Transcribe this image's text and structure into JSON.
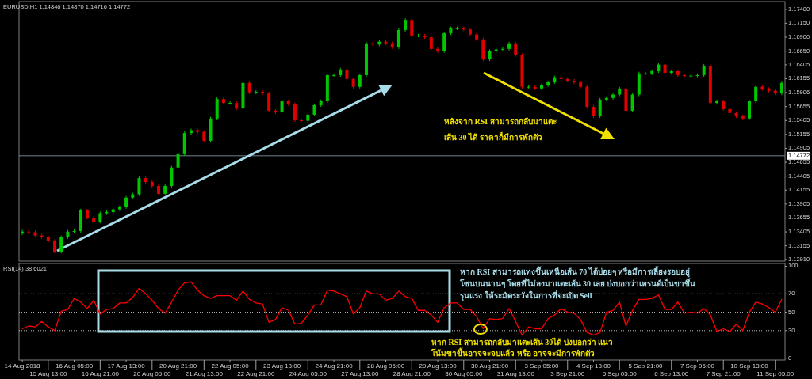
{
  "chart_data": [
    {
      "type": "candlestick",
      "title": "EURUSD.H1 1.14846 1.14870 1.14716 1.14772",
      "ohlc": [
        [
          1.1338,
          1.1344,
          1.1335,
          1.1341
        ],
        [
          1.1341,
          1.1344,
          1.1337,
          1.134
        ],
        [
          1.134,
          1.1343,
          1.1331,
          1.1334
        ],
        [
          1.1334,
          1.1337,
          1.1328,
          1.1331
        ],
        [
          1.1331,
          1.1334,
          1.1321,
          1.1324
        ],
        [
          1.1324,
          1.1327,
          1.1302,
          1.1305
        ],
        [
          1.1305,
          1.1334,
          1.1302,
          1.1331
        ],
        [
          1.1331,
          1.1344,
          1.1328,
          1.1341
        ],
        [
          1.1341,
          1.1345,
          1.1338,
          1.1342
        ],
        [
          1.1342,
          1.1382,
          1.1339,
          1.1379
        ],
        [
          1.1379,
          1.1382,
          1.1363,
          1.1366
        ],
        [
          1.1366,
          1.1369,
          1.1356,
          1.1359
        ],
        [
          1.1359,
          1.1377,
          1.1356,
          1.1374
        ],
        [
          1.1374,
          1.1379,
          1.1371,
          1.1376
        ],
        [
          1.1376,
          1.1384,
          1.1373,
          1.1381
        ],
        [
          1.1381,
          1.1388,
          1.1378,
          1.1385
        ],
        [
          1.1385,
          1.1405,
          1.1382,
          1.1402
        ],
        [
          1.1402,
          1.1411,
          1.1399,
          1.1408
        ],
        [
          1.1408,
          1.144,
          1.1405,
          1.1437
        ],
        [
          1.1437,
          1.144,
          1.1427,
          1.143
        ],
        [
          1.143,
          1.1433,
          1.142,
          1.1423
        ],
        [
          1.1423,
          1.1426,
          1.1406,
          1.1409
        ],
        [
          1.1409,
          1.1426,
          1.1406,
          1.1423
        ],
        [
          1.1423,
          1.1459,
          1.142,
          1.1456
        ],
        [
          1.1456,
          1.1483,
          1.1453,
          1.148
        ],
        [
          1.148,
          1.1521,
          1.1477,
          1.1518
        ],
        [
          1.1518,
          1.1526,
          1.1515,
          1.1523
        ],
        [
          1.1523,
          1.1526,
          1.1517,
          1.152
        ],
        [
          1.152,
          1.1523,
          1.1501,
          1.1504
        ],
        [
          1.1504,
          1.1547,
          1.1501,
          1.1544
        ],
        [
          1.1544,
          1.1582,
          1.1541,
          1.1579
        ],
        [
          1.1579,
          1.1582,
          1.1569,
          1.1572
        ],
        [
          1.1572,
          1.1575,
          1.1569,
          1.1572
        ],
        [
          1.1572,
          1.1575,
          1.1559,
          1.1562
        ],
        [
          1.1562,
          1.1611,
          1.1559,
          1.1608
        ],
        [
          1.1608,
          1.1611,
          1.1588,
          1.1591
        ],
        [
          1.1591,
          1.1595,
          1.1588,
          1.1592
        ],
        [
          1.1592,
          1.1595,
          1.1586,
          1.1589
        ],
        [
          1.1589,
          1.1592,
          1.1555,
          1.1558
        ],
        [
          1.1558,
          1.1561,
          1.1552,
          1.1555
        ],
        [
          1.1555,
          1.1578,
          1.1552,
          1.1575
        ],
        [
          1.1575,
          1.1578,
          1.1567,
          1.157
        ],
        [
          1.157,
          1.1573,
          1.1538,
          1.1541
        ],
        [
          1.1541,
          1.1544,
          1.1537,
          1.154
        ],
        [
          1.154,
          1.1554,
          1.1537,
          1.1551
        ],
        [
          1.1551,
          1.1571,
          1.1548,
          1.1568
        ],
        [
          1.1568,
          1.1578,
          1.1565,
          1.1575
        ],
        [
          1.1575,
          1.1625,
          1.1572,
          1.1622
        ],
        [
          1.1622,
          1.1625,
          1.1619,
          1.1622
        ],
        [
          1.1622,
          1.1635,
          1.1619,
          1.1632
        ],
        [
          1.1632,
          1.1635,
          1.1612,
          1.1615
        ],
        [
          1.1615,
          1.1618,
          1.1598,
          1.1601
        ],
        [
          1.1601,
          1.1625,
          1.1598,
          1.1622
        ],
        [
          1.1622,
          1.1682,
          1.1619,
          1.1679
        ],
        [
          1.1679,
          1.1682,
          1.1674,
          1.1677
        ],
        [
          1.1677,
          1.1685,
          1.1674,
          1.1682
        ],
        [
          1.1682,
          1.1685,
          1.1676,
          1.1679
        ],
        [
          1.1679,
          1.1682,
          1.1669,
          1.1672
        ],
        [
          1.1672,
          1.1706,
          1.1669,
          1.1703
        ],
        [
          1.1703,
          1.1724,
          1.17,
          1.1721
        ],
        [
          1.1721,
          1.1724,
          1.169,
          1.1693
        ],
        [
          1.1693,
          1.1696,
          1.169,
          1.1693
        ],
        [
          1.1693,
          1.1696,
          1.1687,
          1.169
        ],
        [
          1.169,
          1.1693,
          1.1666,
          1.1669
        ],
        [
          1.1669,
          1.1672,
          1.1662,
          1.1665
        ],
        [
          1.1665,
          1.17,
          1.1662,
          1.1697
        ],
        [
          1.1697,
          1.1709,
          1.1694,
          1.1706
        ],
        [
          1.1706,
          1.1709,
          1.1703,
          1.1706
        ],
        [
          1.1706,
          1.1709,
          1.1701,
          1.1704
        ],
        [
          1.1704,
          1.1707,
          1.1692,
          1.1695
        ],
        [
          1.1695,
          1.1698,
          1.1683,
          1.1686
        ],
        [
          1.1686,
          1.1689,
          1.1647,
          1.165
        ],
        [
          1.165,
          1.1668,
          1.1647,
          1.1665
        ],
        [
          1.1665,
          1.1671,
          1.1662,
          1.1668
        ],
        [
          1.1668,
          1.1672,
          1.1665,
          1.1669
        ],
        [
          1.1669,
          1.1682,
          1.1666,
          1.1679
        ],
        [
          1.1679,
          1.1682,
          1.1655,
          1.1658
        ],
        [
          1.1658,
          1.1661,
          1.1598,
          1.1601
        ],
        [
          1.1601,
          1.1604,
          1.1598,
          1.1601
        ],
        [
          1.1601,
          1.1604,
          1.1595,
          1.1598
        ],
        [
          1.1598,
          1.1607,
          1.1595,
          1.1604
        ],
        [
          1.1604,
          1.1612,
          1.1601,
          1.1609
        ],
        [
          1.1609,
          1.1621,
          1.1606,
          1.1618
        ],
        [
          1.1618,
          1.1621,
          1.1612,
          1.1615
        ],
        [
          1.1615,
          1.1618,
          1.1609,
          1.1612
        ],
        [
          1.1612,
          1.1615,
          1.1606,
          1.1609
        ],
        [
          1.1609,
          1.1612,
          1.1598,
          1.1601
        ],
        [
          1.1601,
          1.1604,
          1.1562,
          1.1565
        ],
        [
          1.1565,
          1.1568,
          1.1545,
          1.1548
        ],
        [
          1.1548,
          1.1581,
          1.1545,
          1.1578
        ],
        [
          1.1578,
          1.1584,
          1.1575,
          1.1581
        ],
        [
          1.1581,
          1.159,
          1.1578,
          1.1587
        ],
        [
          1.1587,
          1.1601,
          1.1584,
          1.1598
        ],
        [
          1.1598,
          1.1601,
          1.1555,
          1.1558
        ],
        [
          1.1558,
          1.159,
          1.1555,
          1.1587
        ],
        [
          1.1587,
          1.1628,
          1.1584,
          1.1625
        ],
        [
          1.1625,
          1.1628,
          1.1622,
          1.1625
        ],
        [
          1.1625,
          1.1632,
          1.1622,
          1.1629
        ],
        [
          1.1629,
          1.1644,
          1.1626,
          1.1641
        ],
        [
          1.1641,
          1.1644,
          1.1623,
          1.1626
        ],
        [
          1.1626,
          1.1632,
          1.1623,
          1.1629
        ],
        [
          1.1629,
          1.1632,
          1.1619,
          1.1622
        ],
        [
          1.1622,
          1.1625,
          1.1618,
          1.1621
        ],
        [
          1.1621,
          1.1624,
          1.1618,
          1.1621
        ],
        [
          1.1621,
          1.1625,
          1.1618,
          1.1622
        ],
        [
          1.1622,
          1.1642,
          1.1619,
          1.1639
        ],
        [
          1.1639,
          1.1642,
          1.1569,
          1.1572
        ],
        [
          1.1572,
          1.1578,
          1.1569,
          1.1575
        ],
        [
          1.1575,
          1.1578,
          1.1558,
          1.1561
        ],
        [
          1.1561,
          1.1564,
          1.1551,
          1.1554
        ],
        [
          1.1554,
          1.1557,
          1.1545,
          1.1548
        ],
        [
          1.1548,
          1.1551,
          1.1541,
          1.1544
        ],
        [
          1.1544,
          1.1578,
          1.1541,
          1.1575
        ],
        [
          1.1575,
          1.1604,
          1.1572,
          1.1601
        ],
        [
          1.1601,
          1.1604,
          1.1594,
          1.1597
        ],
        [
          1.1597,
          1.16,
          1.1591,
          1.1594
        ],
        [
          1.1594,
          1.1597,
          1.1586,
          1.1589
        ],
        [
          1.1589,
          1.1611,
          1.1586,
          1.1608
        ]
      ],
      "ylim": [
        1.1288,
        1.1754
      ],
      "yticks": [
        {
          "value": 1.174,
          "label": "1.17400"
        },
        {
          "value": 1.1715,
          "label": "1.17150"
        },
        {
          "value": 1.169,
          "label": "1.16900"
        },
        {
          "value": 1.1665,
          "label": "1.16650"
        },
        {
          "value": 1.16405,
          "label": "1.16405"
        },
        {
          "value": 1.16155,
          "label": "1.16155"
        },
        {
          "value": 1.15906,
          "label": "1.15906"
        },
        {
          "value": 1.15655,
          "label": "1.15655"
        },
        {
          "value": 1.15405,
          "label": "1.15405"
        },
        {
          "value": 1.15155,
          "label": "1.15155"
        },
        {
          "value": 1.14905,
          "label": "1.14905"
        },
        {
          "value": 1.14655,
          "label": "1.14655"
        },
        {
          "value": 1.14405,
          "label": "1.14405"
        },
        {
          "value": 1.14155,
          "label": "1.14155"
        },
        {
          "value": 1.13905,
          "label": "1.13905"
        },
        {
          "value": 1.13655,
          "label": "1.13655"
        },
        {
          "value": 1.13405,
          "label": "1.13405"
        },
        {
          "value": 1.13155,
          "label": "1.13155"
        },
        {
          "value": 1.1291,
          "label": "1.12910"
        }
      ],
      "ref_lines": [
        {
          "axis": "y",
          "value": 1.14772,
          "label": "1.14772",
          "color": "#708090"
        }
      ],
      "annotations": [
        "หลังจาก RSI สามารถกลับมาแตะ",
        "เส้น 30 ได้ ราคาก็มีการพักตัว"
      ]
    },
    {
      "type": "line",
      "title": "RSI(14) 38.6021",
      "categories": [
        "14 Aug 2018",
        null,
        null,
        null,
        "15 Aug 13:00",
        null,
        null,
        null,
        "16 Aug 05:00",
        null,
        null,
        null,
        "16 Aug 21:00",
        null,
        null,
        null,
        "17 Aug 13:00",
        null,
        null,
        null,
        "20 Aug 05:00",
        null,
        null,
        null,
        "20 Aug 21:00",
        null,
        null,
        null,
        "21 Aug 13:00",
        null,
        null,
        null,
        "22 Aug 05:00",
        null,
        null,
        null,
        "22 Aug 21:00",
        null,
        null,
        null,
        "23 Aug 13:00",
        null,
        null,
        null,
        "24 Aug 05:00",
        null,
        null,
        null,
        "24 Aug 21:00",
        null,
        null,
        null,
        "27 Aug 13:00",
        null,
        null,
        null,
        "28 Aug 05:00",
        null,
        null,
        null,
        "28 Aug 21:00",
        null,
        null,
        null,
        "29 Aug 13:00",
        null,
        null,
        null,
        "30 Aug 05:00",
        null,
        null,
        null,
        "30 Aug 21:00",
        null,
        null,
        null,
        "31 Aug 13:00",
        null,
        null,
        null,
        "3 Sep 05:00",
        null,
        null,
        null,
        "3 Sep 21:00",
        null,
        null,
        null,
        "4 Sep 13:00",
        null,
        null,
        null,
        "5 Sep 05:00",
        null,
        null,
        null,
        "5 Sep 21:00",
        null,
        null,
        null,
        "6 Sep 13:00",
        null,
        null,
        null,
        "7 Sep 05:00",
        null,
        null,
        null,
        "7 Sep 21:00",
        null,
        null,
        null,
        "10 Sep 13:00",
        null,
        null,
        null,
        "11 Sep 05:00",
        null
      ],
      "series": [
        {
          "color": "#ff0000",
          "values": [
            32,
            35,
            34,
            40,
            34,
            30,
            51,
            53,
            65,
            61,
            54,
            63,
            48,
            53,
            54,
            60,
            60,
            66,
            76,
            70,
            63,
            54,
            49,
            61,
            74,
            82,
            83,
            74,
            68,
            65,
            68,
            68,
            68,
            63,
            73,
            64,
            60,
            59,
            39,
            42,
            55,
            52,
            37,
            38,
            47,
            58,
            58,
            74,
            73,
            70,
            67,
            48,
            55,
            73,
            70,
            70,
            63,
            65,
            73,
            67,
            65,
            52,
            52,
            47,
            39,
            55,
            60,
            60,
            53,
            53,
            45,
            32,
            43,
            42,
            43,
            54,
            40,
            25,
            34,
            32,
            32,
            43,
            47,
            54,
            50,
            49,
            42,
            28,
            25,
            28,
            50,
            52,
            61,
            35,
            52,
            64,
            64,
            65,
            69,
            53,
            53,
            61,
            49,
            50,
            49,
            54,
            47,
            29,
            32,
            29,
            37,
            30,
            50,
            61,
            59,
            55,
            50,
            64
          ]
        }
      ],
      "ylim": [
        -2,
        103
      ],
      "yticks": [
        0,
        30,
        50,
        70,
        100
      ],
      "ref_lines": [
        {
          "axis": "y",
          "value": 30,
          "color": "#c0c0c0",
          "line_style": "dotted"
        },
        {
          "axis": "y",
          "value": 50,
          "color": "#c0c0c0",
          "line_style": "dotted"
        },
        {
          "axis": "y",
          "value": 70,
          "color": "#c0c0c0",
          "line_style": "dotted"
        }
      ],
      "annotations": [
        "หาก RSI สามารถแทงขึ้นเหนือเส้น 70 ได้บ่อยๆ หรือมีการเลี้ยงรอบอยู่",
        "โซนบนนานๆ โดยที่ไม่ลงมาแตะเส้น 30 เลย บ่งบอกว่าเทรนด์เป็นขาขึ้น",
        "รุนแรง ให้ระมัดระวังในการที่จะเปิด Sell",
        "หาก RSI สามารถกลับมาแตะเส้น 30ได้ บ่งบอกว่า แนว",
        "โน้มขาขึ้นอาจจะจบแล้ว หรือ อาจจะมีการพักตัว"
      ]
    }
  ]
}
